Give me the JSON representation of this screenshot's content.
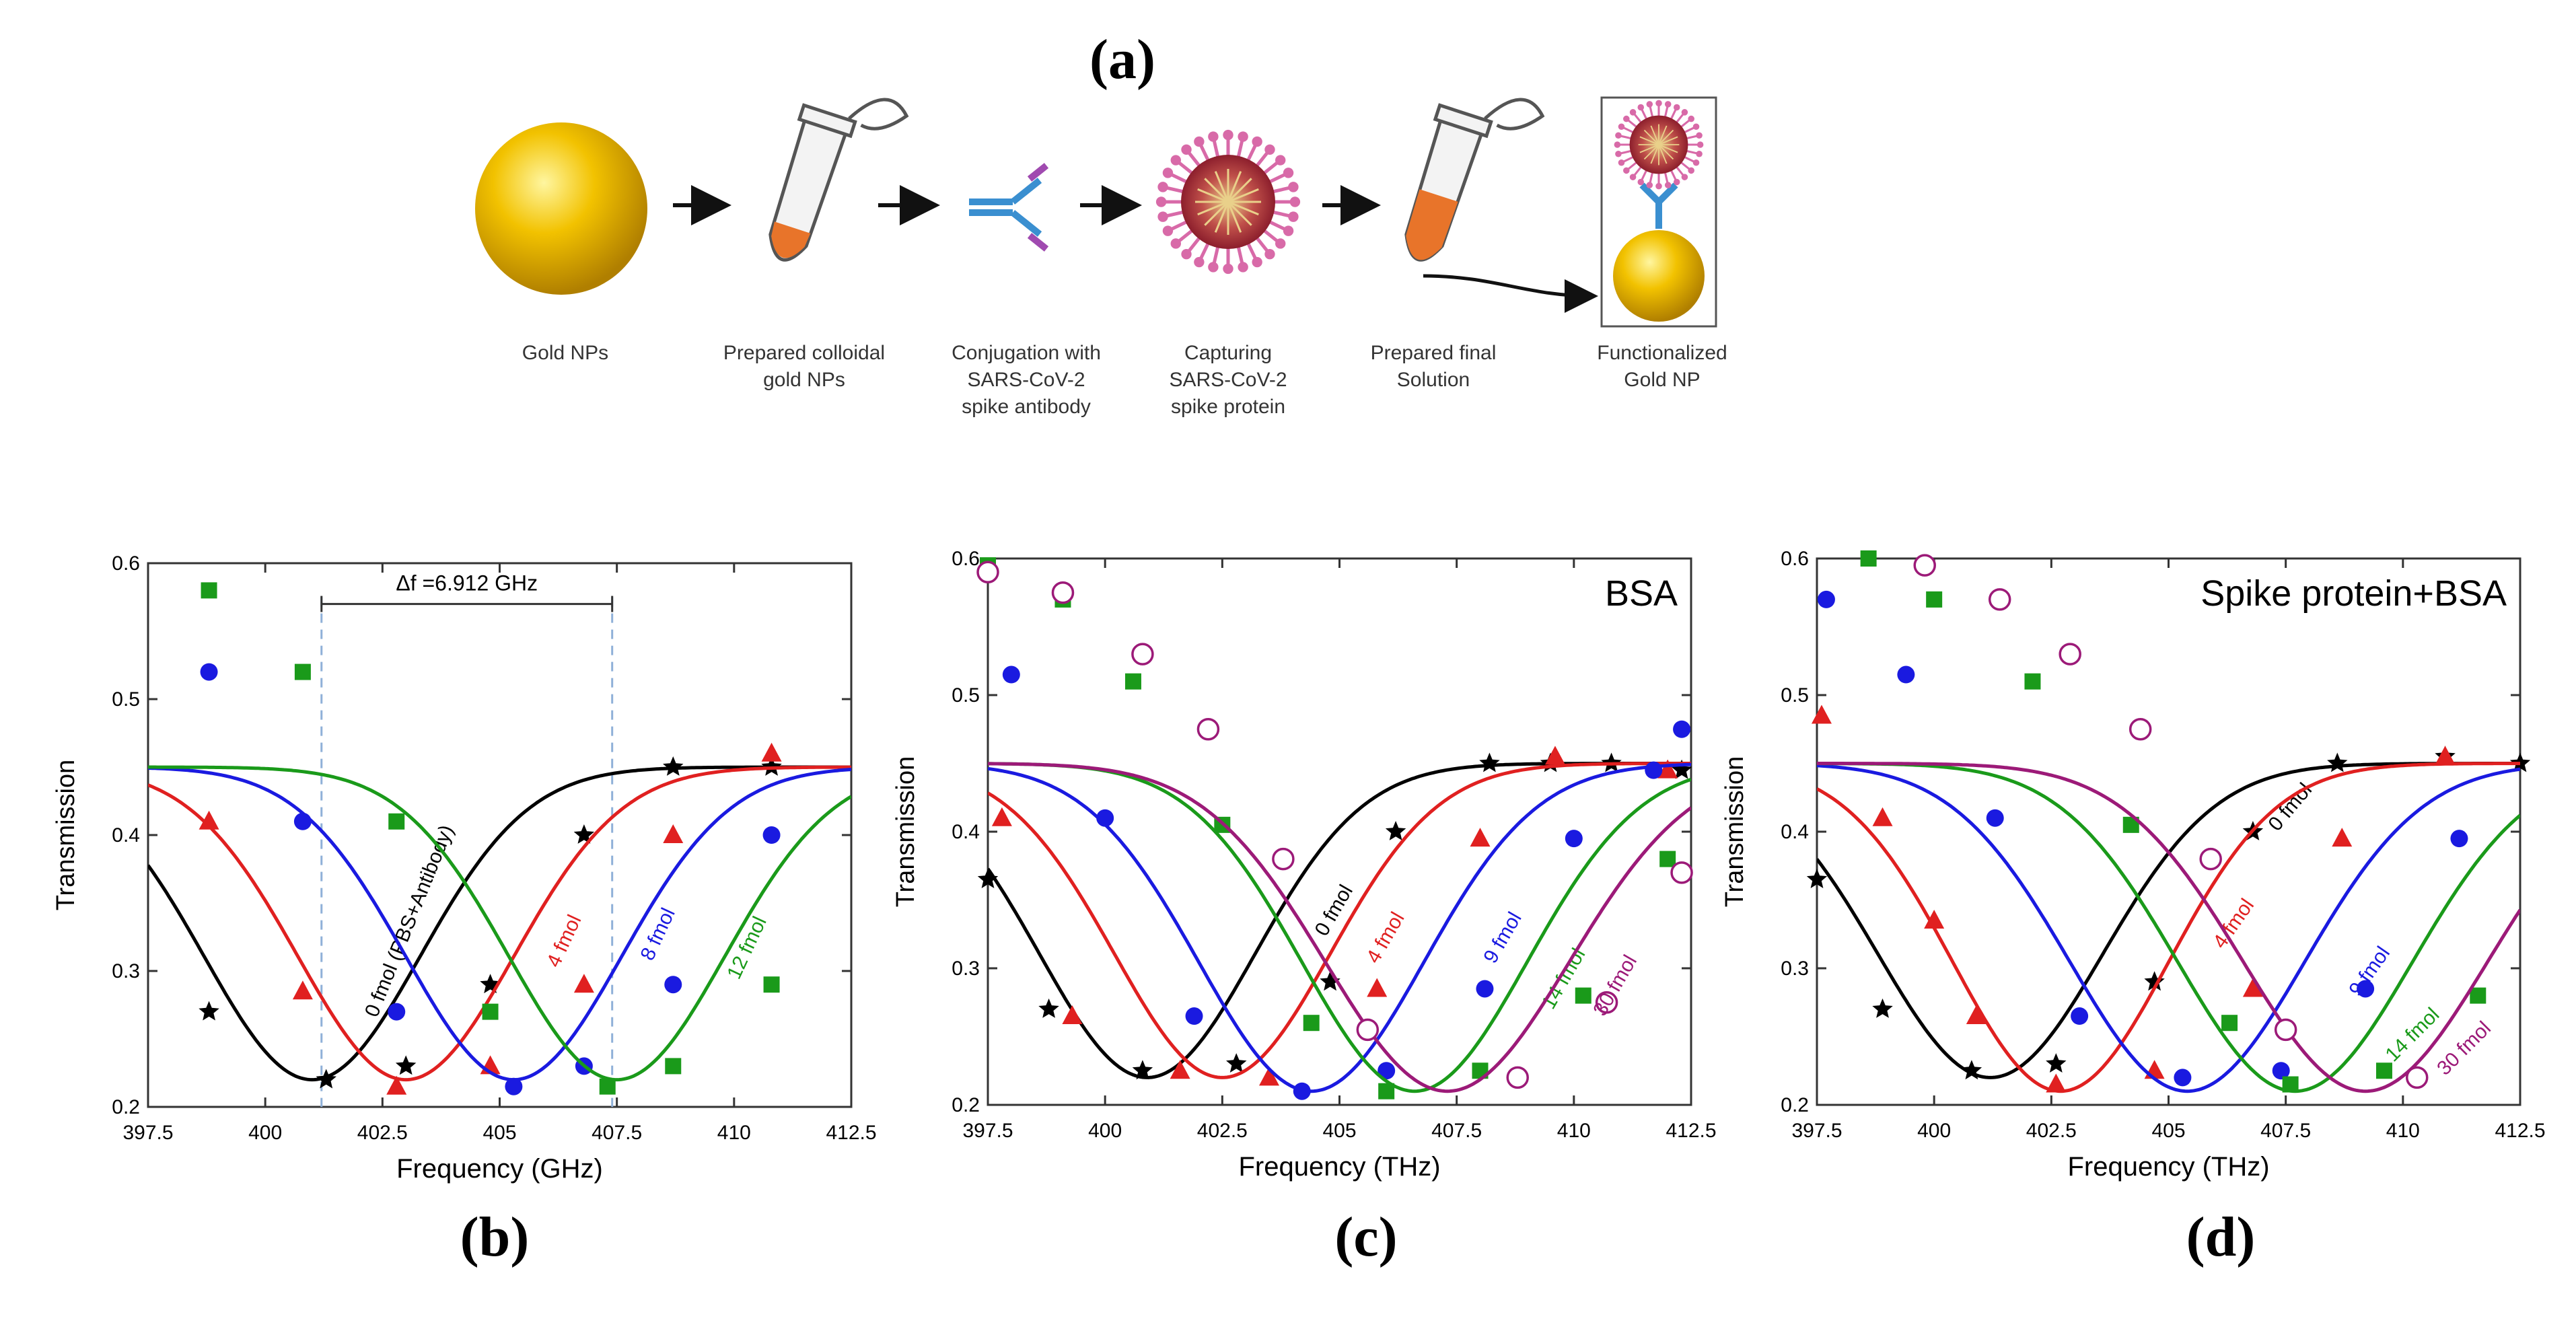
{
  "figure": {
    "label_a": "(a)",
    "label_b": "(b)",
    "label_c": "(c)",
    "label_d": "(d)"
  },
  "workflow": {
    "steps": [
      {
        "caption": "Gold NPs"
      },
      {
        "caption": "Prepared colloidal\ngold NPs"
      },
      {
        "caption": "Conjugation with\nSARS-CoV-2\nspike antibody"
      },
      {
        "caption": "Capturing\nSARS-CoV-2\nspike protein"
      },
      {
        "caption": "Prepared final\nSolution"
      },
      {
        "caption": "Functionalized\nGold NP"
      }
    ],
    "colors": {
      "gold": "#f2c200",
      "antibody": "#3a8fd0",
      "virus": "#b23a48",
      "spike": "#d86aa8",
      "liquid": "#e8742a"
    }
  },
  "chart_data": [
    {
      "id": "b",
      "type": "line",
      "title": "",
      "xlabel": "Frequency (GHz)",
      "ylabel": "Transmission",
      "xlim": [
        397.5,
        412.5
      ],
      "ylim": [
        0.2,
        0.6
      ],
      "xticks": [
        "397.5",
        "400",
        "402.5",
        "405",
        "407.5",
        "410",
        "412.5"
      ],
      "yticks": [
        "0.2",
        "0.3",
        "0.4",
        "0.5",
        "0.6"
      ],
      "annotation": {
        "text": "Δf =6.912 GHz",
        "x1": 401.2,
        "x2": 407.4,
        "y": 0.57
      },
      "series": [
        {
          "name": "0 fmol (PBS+Antibody)",
          "color": "#000000",
          "marker": "star",
          "label_x": 403.2,
          "label_y": 0.335,
          "label_rot": -68,
          "fit": {
            "base": 0.45,
            "depth": 0.23,
            "center": 401.0,
            "sigma": 2.3
          },
          "points": [
            [
              398.8,
              0.27
            ],
            [
              401.3,
              0.22
            ],
            [
              403.0,
              0.23
            ],
            [
              404.8,
              0.29
            ],
            [
              406.8,
              0.4
            ],
            [
              408.7,
              0.45
            ],
            [
              410.8,
              0.45
            ]
          ]
        },
        {
          "name": "4 fmol",
          "color": "#e02020",
          "marker": "triangle",
          "label_x": 406.5,
          "label_y": 0.32,
          "label_rot": -65,
          "fit": {
            "base": 0.45,
            "depth": 0.23,
            "center": 403.0,
            "sigma": 2.3
          },
          "points": [
            [
              398.8,
              0.41
            ],
            [
              400.8,
              0.285
            ],
            [
              402.8,
              0.215
            ],
            [
              404.8,
              0.23
            ],
            [
              406.8,
              0.29
            ],
            [
              408.7,
              0.4
            ],
            [
              410.8,
              0.46
            ]
          ]
        },
        {
          "name": "8 fmol",
          "color": "#1a1ae0",
          "marker": "circle",
          "label_x": 408.5,
          "label_y": 0.325,
          "label_rot": -65,
          "fit": {
            "base": 0.45,
            "depth": 0.23,
            "center": 405.3,
            "sigma": 2.3
          },
          "points": [
            [
              398.8,
              0.52
            ],
            [
              400.8,
              0.41
            ],
            [
              402.8,
              0.27
            ],
            [
              405.3,
              0.215
            ],
            [
              406.8,
              0.23
            ],
            [
              408.7,
              0.29
            ],
            [
              410.8,
              0.4
            ]
          ]
        },
        {
          "name": "12 fmol",
          "color": "#1a9a1a",
          "marker": "square",
          "label_x": 410.4,
          "label_y": 0.315,
          "label_rot": -65,
          "fit": {
            "base": 0.45,
            "depth": 0.23,
            "center": 407.5,
            "sigma": 2.3
          },
          "points": [
            [
              398.8,
              0.58
            ],
            [
              400.8,
              0.52
            ],
            [
              402.8,
              0.41
            ],
            [
              404.8,
              0.27
            ],
            [
              407.3,
              0.215
            ],
            [
              408.7,
              0.23
            ],
            [
              410.8,
              0.29
            ]
          ]
        }
      ]
    },
    {
      "id": "c",
      "type": "line",
      "title": "BSA",
      "xlabel": "Frequency (THz)",
      "ylabel": "Transmission",
      "xlim": [
        397.5,
        412.5
      ],
      "ylim": [
        0.2,
        0.6
      ],
      "xticks": [
        "397.5",
        "400",
        "402.5",
        "405",
        "407.5",
        "410",
        "412.5"
      ],
      "yticks": [
        "0.2",
        "0.3",
        "0.4",
        "0.5",
        "0.6"
      ],
      "series": [
        {
          "name": "0 fmol",
          "color": "#000000",
          "marker": "star",
          "label_x": 405.0,
          "label_y": 0.34,
          "label_rot": -60,
          "fit": {
            "base": 0.45,
            "depth": 0.23,
            "center": 400.9,
            "sigma": 2.3
          },
          "points": [
            [
              397.5,
              0.365
            ],
            [
              398.8,
              0.27
            ],
            [
              400.8,
              0.225
            ],
            [
              402.8,
              0.23
            ],
            [
              404.8,
              0.29
            ],
            [
              406.2,
              0.4
            ],
            [
              408.2,
              0.45
            ],
            [
              409.5,
              0.45
            ],
            [
              410.8,
              0.45
            ],
            [
              412.3,
              0.445
            ]
          ]
        },
        {
          "name": "4 fmol",
          "color": "#e02020",
          "marker": "triangle",
          "label_x": 406.1,
          "label_y": 0.32,
          "label_rot": -60,
          "fit": {
            "base": 0.45,
            "depth": 0.23,
            "center": 402.5,
            "sigma": 2.3
          },
          "points": [
            [
              397.8,
              0.41
            ],
            [
              399.3,
              0.265
            ],
            [
              401.6,
              0.225
            ],
            [
              403.5,
              0.22
            ],
            [
              405.8,
              0.285
            ],
            [
              408.0,
              0.395
            ],
            [
              409.6,
              0.455
            ],
            [
              412.0,
              0.445
            ]
          ]
        },
        {
          "name": "9 fmol",
          "color": "#1a1ae0",
          "marker": "circle",
          "label_x": 408.6,
          "label_y": 0.32,
          "label_rot": -60,
          "fit": {
            "base": 0.45,
            "depth": 0.24,
            "center": 404.4,
            "sigma": 2.4
          },
          "points": [
            [
              398.0,
              0.515
            ],
            [
              400.0,
              0.41
            ],
            [
              401.9,
              0.265
            ],
            [
              404.2,
              0.21
            ],
            [
              406.0,
              0.225
            ],
            [
              408.1,
              0.285
            ],
            [
              410.0,
              0.395
            ],
            [
              411.7,
              0.445
            ],
            [
              412.3,
              0.475
            ]
          ]
        },
        {
          "name": "14 fmol",
          "color": "#1a9a1a",
          "marker": "square",
          "label_x": 409.9,
          "label_y": 0.29,
          "label_rot": -60,
          "fit": {
            "base": 0.45,
            "depth": 0.24,
            "center": 406.6,
            "sigma": 2.4
          },
          "points": [
            [
              397.5,
              0.595
            ],
            [
              399.1,
              0.57
            ],
            [
              400.6,
              0.51
            ],
            [
              402.5,
              0.405
            ],
            [
              404.4,
              0.26
            ],
            [
              406.0,
              0.21
            ],
            [
              408.0,
              0.225
            ],
            [
              410.2,
              0.28
            ],
            [
              412.0,
              0.38
            ]
          ]
        },
        {
          "name": "30 fmol",
          "color": "#9c1a78",
          "marker": "open_circle",
          "label_x": 411.0,
          "label_y": 0.285,
          "label_rot": -60,
          "fit": {
            "base": 0.45,
            "depth": 0.24,
            "center": 407.3,
            "sigma": 2.6
          },
          "points": [
            [
              397.5,
              0.59
            ],
            [
              399.1,
              0.575
            ],
            [
              400.8,
              0.53
            ],
            [
              402.2,
              0.475
            ],
            [
              403.8,
              0.38
            ],
            [
              405.6,
              0.255
            ],
            [
              408.8,
              0.22
            ],
            [
              410.7,
              0.275
            ],
            [
              412.3,
              0.37
            ]
          ]
        }
      ]
    },
    {
      "id": "d",
      "type": "line",
      "title": "Spike protein+BSA",
      "xlabel": "Frequency (THz)",
      "ylabel": "Transmission",
      "xlim": [
        397.5,
        412.5
      ],
      "ylim": [
        0.2,
        0.6
      ],
      "xticks": [
        "397.5",
        "400",
        "402.5",
        "405",
        "407.5",
        "410",
        "412.5"
      ],
      "yticks": [
        "0.2",
        "0.3",
        "0.4",
        "0.5",
        "0.6"
      ],
      "series": [
        {
          "name": "0 fmol",
          "color": "#000000",
          "marker": "star",
          "label_x": 407.7,
          "label_y": 0.415,
          "label_rot": -50,
          "fit": {
            "base": 0.45,
            "depth": 0.23,
            "center": 401.2,
            "sigma": 2.4
          },
          "points": [
            [
              397.5,
              0.365
            ],
            [
              398.9,
              0.27
            ],
            [
              400.8,
              0.225
            ],
            [
              402.6,
              0.23
            ],
            [
              404.7,
              0.29
            ],
            [
              406.8,
              0.4
            ],
            [
              408.6,
              0.45
            ],
            [
              410.9,
              0.455
            ],
            [
              412.5,
              0.45
            ]
          ]
        },
        {
          "name": "4 fmol",
          "color": "#e02020",
          "marker": "triangle",
          "label_x": 406.5,
          "label_y": 0.33,
          "label_rot": -55,
          "fit": {
            "base": 0.45,
            "depth": 0.24,
            "center": 402.7,
            "sigma": 2.3
          },
          "points": [
            [
              397.6,
              0.485
            ],
            [
              398.9,
              0.41
            ],
            [
              400.0,
              0.335
            ],
            [
              400.9,
              0.265
            ],
            [
              402.6,
              0.215
            ],
            [
              404.7,
              0.225
            ],
            [
              406.8,
              0.285
            ],
            [
              408.7,
              0.395
            ],
            [
              410.9,
              0.455
            ]
          ]
        },
        {
          "name": "9 fmol",
          "color": "#1a1ae0",
          "marker": "circle",
          "label_x": 409.4,
          "label_y": 0.295,
          "label_rot": -55,
          "fit": {
            "base": 0.45,
            "depth": 0.24,
            "center": 405.4,
            "sigma": 2.5
          },
          "points": [
            [
              397.7,
              0.57
            ],
            [
              399.4,
              0.515
            ],
            [
              401.3,
              0.41
            ],
            [
              403.1,
              0.265
            ],
            [
              405.3,
              0.22
            ],
            [
              407.4,
              0.225
            ],
            [
              409.2,
              0.285
            ],
            [
              411.2,
              0.395
            ]
          ]
        },
        {
          "name": "14 fmol",
          "color": "#1a9a1a",
          "marker": "square",
          "label_x": 410.3,
          "label_y": 0.248,
          "label_rot": -45,
          "fit": {
            "base": 0.45,
            "depth": 0.24,
            "center": 407.7,
            "sigma": 2.5
          },
          "points": [
            [
              398.6,
              0.6
            ],
            [
              400.0,
              0.57
            ],
            [
              402.1,
              0.51
            ],
            [
              404.2,
              0.405
            ],
            [
              406.3,
              0.26
            ],
            [
              407.6,
              0.215
            ],
            [
              409.6,
              0.225
            ],
            [
              411.6,
              0.28
            ]
          ]
        },
        {
          "name": "30 fmol",
          "color": "#9c1a78",
          "marker": "open_circle",
          "label_x": 411.4,
          "label_y": 0.238,
          "label_rot": -45,
          "fit": {
            "base": 0.45,
            "depth": 0.24,
            "center": 409.2,
            "sigma": 2.6
          },
          "points": [
            [
              399.8,
              0.595
            ],
            [
              401.4,
              0.57
            ],
            [
              402.9,
              0.53
            ],
            [
              404.4,
              0.475
            ],
            [
              405.9,
              0.38
            ],
            [
              407.5,
              0.255
            ],
            [
              410.3,
              0.22
            ]
          ]
        }
      ]
    }
  ]
}
